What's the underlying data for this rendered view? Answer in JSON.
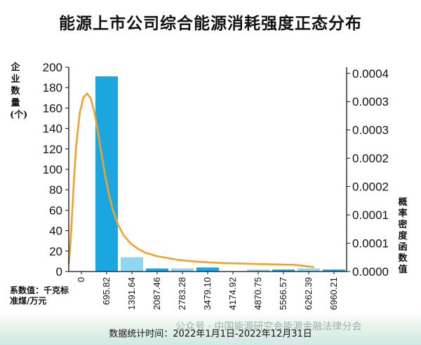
{
  "title": "能源上市公司综合能源消耗强度正态分布",
  "footnote": "数据统计时间：2022年1月1日-2022年12月31日",
  "watermark": "公众号 · 中国能源研究会能源金融法律分会",
  "colors": {
    "bar": "#1aa7e0",
    "bar_light": "#8fd6f4",
    "curve": "#f2a22a",
    "axis": "#111111"
  },
  "chart_data": {
    "type": "bar",
    "title": "能源上市公司综合能源消耗强度正态分布",
    "xlabel": "系数值：千克标准煤/万元",
    "ylabel": "企业数量(个)",
    "y2label": "概率密度函数值",
    "categories": [
      "0",
      "695.82",
      "1391.64",
      "2087.46",
      "2783.28",
      "3479.10",
      "4174.92",
      "4870.75",
      "5566.57",
      "6262.39",
      "6960.21"
    ],
    "values": [
      0,
      191,
      14,
      3,
      3,
      4,
      0,
      2,
      2,
      3,
      2
    ],
    "bar_shades": [
      "dark",
      "dark",
      "light",
      "dark",
      "light",
      "dark",
      "light",
      "light",
      "dark",
      "light",
      "dark"
    ],
    "ylim": [
      0,
      200
    ],
    "yticks": [
      0,
      20,
      40,
      60,
      80,
      100,
      120,
      140,
      160,
      180,
      200
    ],
    "y2ticks": [
      "0.0000",
      "0.0001",
      "0.0001",
      "0.0002",
      "0.0002",
      "0.0003",
      "0.0003",
      "0.0004"
    ],
    "density_series": {
      "name": "概率密度函数值",
      "x": [
        0,
        50,
        100,
        150,
        200,
        300,
        400,
        500,
        600,
        700,
        800,
        900,
        1000,
        1100,
        1200,
        1350,
        1500,
        1700,
        1900,
        2100,
        2400,
        2700,
        3000,
        3400,
        3800,
        4200,
        4700,
        5200,
        5700,
        6200,
        6700
      ],
      "y": [
        9.5e-06,
        5.5e-05,
        0.000125,
        0.000195,
        0.000253,
        0.000324,
        0.000357,
        0.000365,
        0.000355,
        0.000327,
        0.000285,
        0.000237,
        0.000193,
        0.000155,
        0.000123,
        9.1e-05,
        6.9e-05,
        5.1e-05,
        4e-05,
        3.2e-05,
        2.5e-05,
        2.1e-05,
        1.7e-05,
        1.4e-05,
        1.2e-05,
        1.05e-05,
        9.3e-06,
        8.4e-06,
        7.6e-06,
        6.8e-06,
        2e-06
      ],
      "ylim": [
        0,
        0.00042
      ]
    },
    "grid": false,
    "legend": "none"
  }
}
